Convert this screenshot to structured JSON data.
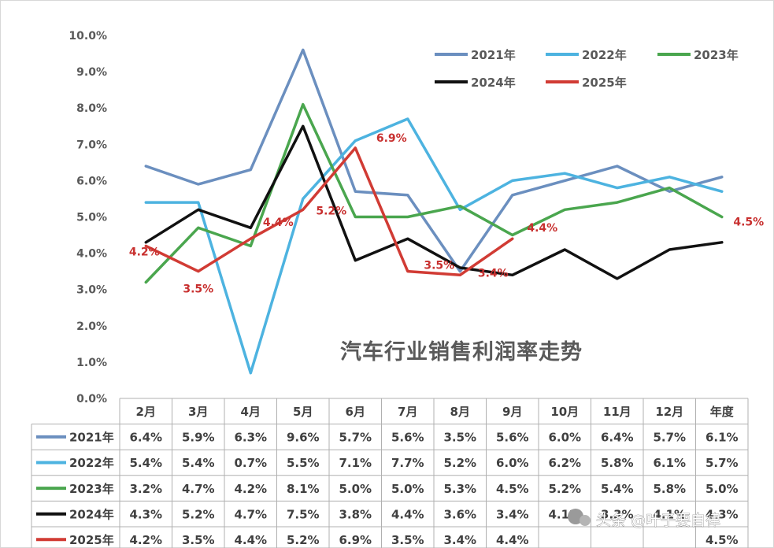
{
  "chart_data": {
    "type": "line",
    "title": "汽车行业销售利润率走势",
    "categories": [
      "2月",
      "3月",
      "4月",
      "5月",
      "6月",
      "7月",
      "8月",
      "9月",
      "10月",
      "11月",
      "12月",
      "年度"
    ],
    "ylim": [
      0,
      10
    ],
    "yticks": [
      "0.0%",
      "1.0%",
      "2.0%",
      "3.0%",
      "4.0%",
      "5.0%",
      "6.0%",
      "7.0%",
      "8.0%",
      "9.0%",
      "10.0%"
    ],
    "series": [
      {
        "name": "2021年",
        "color": "#6b8fbf",
        "values": [
          6.4,
          5.9,
          6.3,
          9.6,
          5.7,
          5.6,
          3.5,
          5.6,
          6.0,
          6.4,
          5.7,
          6.1
        ],
        "table": [
          "6.4%",
          "5.9%",
          "6.3%",
          "9.6%",
          "5.7%",
          "5.6%",
          "3.5%",
          "5.6%",
          "6.0%",
          "6.4%",
          "5.7%",
          "6.1%"
        ]
      },
      {
        "name": "2022年",
        "color": "#4db3e0",
        "values": [
          5.4,
          5.4,
          0.7,
          5.5,
          7.1,
          7.7,
          5.2,
          6.0,
          6.2,
          5.8,
          6.1,
          5.7
        ],
        "table": [
          "5.4%",
          "5.4%",
          "0.7%",
          "5.5%",
          "7.1%",
          "7.7%",
          "5.2%",
          "6.0%",
          "6.2%",
          "5.8%",
          "6.1%",
          "5.7%"
        ]
      },
      {
        "name": "2023年",
        "color": "#4aa64e",
        "values": [
          3.2,
          4.7,
          4.2,
          8.1,
          5.0,
          5.0,
          5.3,
          4.5,
          5.2,
          5.4,
          5.8,
          5.0
        ],
        "table": [
          "3.2%",
          "4.7%",
          "4.2%",
          "8.1%",
          "5.0%",
          "5.0%",
          "5.3%",
          "4.5%",
          "5.2%",
          "5.4%",
          "5.8%",
          "5.0%"
        ]
      },
      {
        "name": "2024年",
        "color": "#111111",
        "values": [
          4.3,
          5.2,
          4.7,
          7.5,
          3.8,
          4.4,
          3.6,
          3.4,
          4.1,
          3.3,
          4.1,
          4.3
        ],
        "table": [
          "4.3%",
          "5.2%",
          "4.7%",
          "7.5%",
          "3.8%",
          "4.4%",
          "3.6%",
          "3.4%",
          "4.1%",
          "3.3%",
          "4.1%",
          "4.3%"
        ]
      },
      {
        "name": "2025年",
        "color": "#d13b34",
        "values": [
          4.2,
          3.5,
          4.4,
          5.2,
          6.9,
          3.5,
          3.4,
          4.4,
          null,
          null,
          null,
          null
        ],
        "table": [
          "4.2%",
          "3.5%",
          "4.4%",
          "5.2%",
          "6.9%",
          "3.5%",
          "3.4%",
          "4.4%",
          "",
          "",
          "",
          "4.5%"
        ]
      }
    ],
    "data_labels": [
      {
        "series": "2025年",
        "category": "2月",
        "text": "4.2%"
      },
      {
        "series": "2025年",
        "category": "3月",
        "text": "3.5%"
      },
      {
        "series": "2025年",
        "category": "4月",
        "text": "4.4%"
      },
      {
        "series": "2025年",
        "category": "5月",
        "text": "5.2%"
      },
      {
        "series": "2025年",
        "category": "6月",
        "text": "6.9%"
      },
      {
        "series": "2025年",
        "category": "7月",
        "text": "3.5%"
      },
      {
        "series": "2025年",
        "category": "8月",
        "text": "3.4%"
      },
      {
        "series": "2025年",
        "category": "9月",
        "text": "4.4%"
      },
      {
        "series": "2025年",
        "category": "年度",
        "text": "4.5%"
      }
    ],
    "legend_position": "top-right"
  },
  "watermark": {
    "text": "头条 @叶子要自律"
  }
}
